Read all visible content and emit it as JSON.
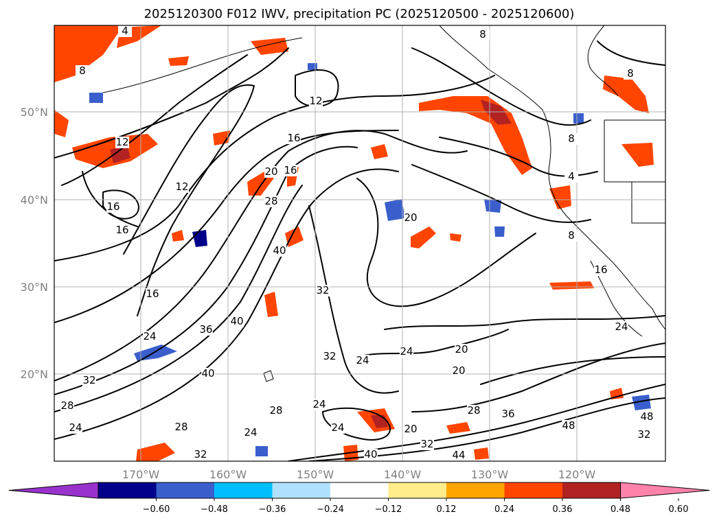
{
  "title": "2025120300 F012 IWV, precipitation PC (2025120500 - 2025120600)",
  "map": {
    "lat_labels": [
      "50°N",
      "40°N",
      "30°N",
      "20°N"
    ],
    "lon_labels": [
      "170°W",
      "160°W",
      "150°W",
      "140°W",
      "130°W",
      "120°W"
    ],
    "gridlines": true
  },
  "colorbar": {
    "ticks": [
      "−0.60",
      "−0.48",
      "−0.36",
      "−0.24",
      "−0.12",
      "0.12",
      "0.24",
      "0.36",
      "0.48",
      "0.60"
    ],
    "colors": [
      "#9932cc",
      "#00008b",
      "#3a5fcd",
      "#00bfff",
      "#b0e2ff",
      "#ffffff",
      "#ffec8b",
      "#ffa500",
      "#ff4500",
      "#b22222",
      "#ff82ab"
    ],
    "extend": "both"
  },
  "contour_labels": [
    "4",
    "8",
    "12",
    "12",
    "16",
    "16",
    "12",
    "16",
    "20",
    "28",
    "40",
    "32",
    "16",
    "24",
    "36",
    "40",
    "40",
    "32",
    "28",
    "24",
    "28",
    "24",
    "28",
    "32",
    "24",
    "24",
    "20",
    "20",
    "20",
    "28",
    "36",
    "48",
    "48",
    "44",
    "40",
    "32",
    "24",
    "8",
    "4",
    "8",
    "16",
    "24",
    "20",
    "16",
    "8",
    "8",
    "32",
    "24",
    "32"
  ]
}
